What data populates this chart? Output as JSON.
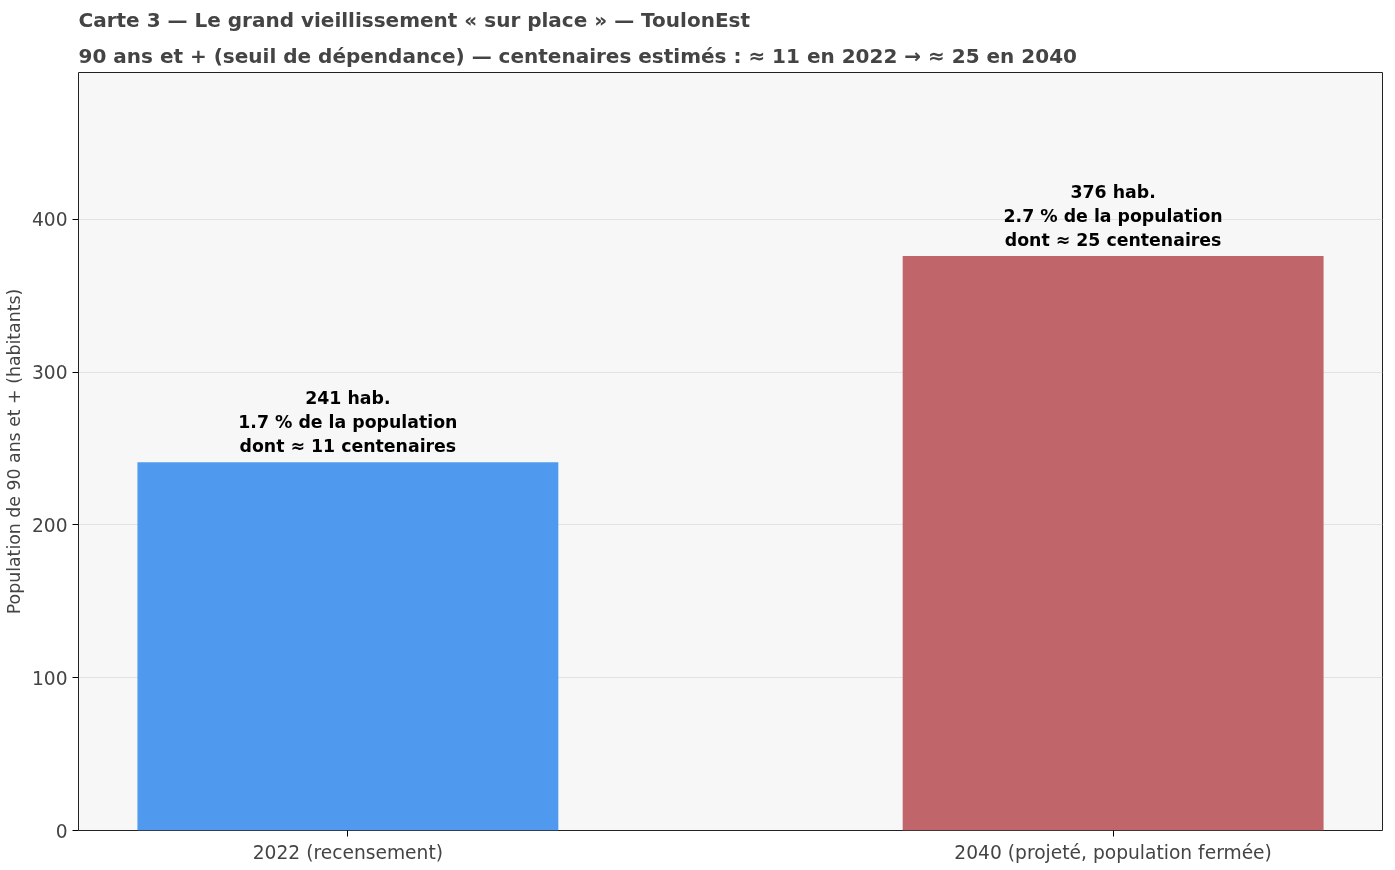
{
  "chart_data": {
    "type": "bar",
    "title": "Carte 3 — Le grand vieillissement « sur place » — ToulonEst",
    "subtitle": "90 ans et + (seuil de dépendance) — centenaires estimés : ≈ 11 en 2022 → ≈ 25 en 2040",
    "ylabel": "Population de 90 ans et + (habitants)",
    "categories": [
      "2022 (recensement)",
      "2040 (projeté, population fermée)"
    ],
    "values": [
      241,
      376
    ],
    "colors": [
      "#4f9aef",
      "#c0666b"
    ],
    "value_labels": [
      "241 hab.\n1.7 % de la population\ndont ≈ 11 centenaires",
      "376 hab.\n2.7 % de la population\ndont ≈ 25 centenaires"
    ],
    "ylim": [
      0,
      496
    ],
    "yticks": [
      0,
      100,
      200,
      300,
      400
    ],
    "grid": "y"
  }
}
